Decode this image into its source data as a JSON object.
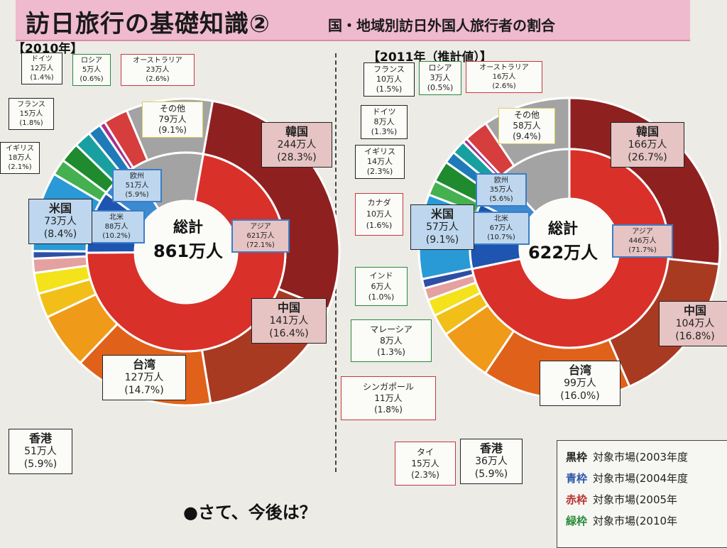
{
  "header": {
    "title": "訪日旅行の基礎知識②",
    "subtitle": "国・地域別訪日外国人旅行者の割合"
  },
  "question": "●さて、今後は？",
  "legend": [
    {
      "key": "黒枠",
      "text": "対象市場(2003年度",
      "color": "#222222"
    },
    {
      "key": "青枠",
      "text": "対象市場(2004年度",
      "color": "#2a55a8"
    },
    {
      "key": "赤枠",
      "text": "対象市場(2005年",
      "color": "#b83030"
    },
    {
      "key": "緑枠",
      "text": "対象市場(2010年",
      "color": "#2a8a3a"
    }
  ],
  "chart_data": [
    {
      "type": "pie",
      "title": "【2010年】",
      "total_label": "総計",
      "total_value": "861万人",
      "inner": [
        {
          "label": "アジア",
          "value": "621万人",
          "pct": "(72.1%)",
          "fraction": 72.1,
          "color": "#d9302a"
        },
        {
          "label": "北米",
          "value": "88万人",
          "pct": "(10.2%)",
          "fraction": 10.2,
          "color": "#1d55b0"
        },
        {
          "label": "欧州",
          "value": "51万人",
          "pct": "(5.9%)",
          "fraction": 5.9,
          "color": "#3c8ad0"
        },
        {
          "label": "",
          "value": "",
          "pct": "",
          "fraction": 11.8,
          "color": "#a3a3a3"
        }
      ],
      "outer": [
        {
          "label": "韓国",
          "value": "244万人",
          "pct": "(28.3%)",
          "fraction": 28.3,
          "color": "#8f2020",
          "frame": "black",
          "bg": "pink"
        },
        {
          "label": "中国",
          "value": "141万人",
          "pct": "(16.4%)",
          "fraction": 16.4,
          "color": "#a93a22",
          "frame": "black",
          "bg": "pink"
        },
        {
          "label": "台湾",
          "value": "127万人",
          "pct": "(14.7%)",
          "fraction": 14.7,
          "color": "#e0621a",
          "frame": "black",
          "bg": "none"
        },
        {
          "label": "香港",
          "value": "51万人",
          "pct": "(5.9%)",
          "fraction": 5.9,
          "color": "#ef9a18",
          "frame": "black",
          "bg": "none"
        },
        {
          "label": "",
          "value": "",
          "pct": "",
          "fraction": 2.6,
          "color": "#f1bf18",
          "frame": "none"
        },
        {
          "label": "",
          "value": "",
          "pct": "",
          "fraction": 2.2,
          "color": "#f4e21a",
          "frame": "none"
        },
        {
          "label": "",
          "value": "",
          "pct": "",
          "fraction": 1.5,
          "color": "#e5a0a0",
          "frame": "none"
        },
        {
          "label": "",
          "value": "",
          "pct": "",
          "fraction": 0.8,
          "color": "#2e4fa6",
          "frame": "none"
        },
        {
          "label": "米国",
          "value": "73万人",
          "pct": "(8.4%)",
          "fraction": 8.4,
          "color": "#2a9ad6",
          "frame": "black",
          "bg": "blue"
        },
        {
          "label": "",
          "value": "",
          "pct": "",
          "fraction": 1.7,
          "color": "#45b050",
          "frame": "none"
        },
        {
          "label": "イギリス",
          "value": "18万人",
          "pct": "(2.1%)",
          "fraction": 2.1,
          "color": "#1f8a2e",
          "frame": "black",
          "bg": "none"
        },
        {
          "label": "フランス",
          "value": "15万人",
          "pct": "(1.8%)",
          "fraction": 1.8,
          "color": "#18a0a0",
          "frame": "black",
          "bg": "none"
        },
        {
          "label": "ドイツ",
          "value": "12万人",
          "pct": "(1.4%)",
          "fraction": 1.4,
          "color": "#1f7ab8",
          "frame": "black",
          "bg": "none"
        },
        {
          "label": "ロシア",
          "value": "5万人",
          "pct": "(0.6%)",
          "fraction": 0.6,
          "color": "#a6308a",
          "frame": "green",
          "bg": "none"
        },
        {
          "label": "オーストラリア",
          "value": "23万人",
          "pct": "(2.6%)",
          "fraction": 2.6,
          "color": "#d63d3d",
          "frame": "red",
          "bg": "none"
        },
        {
          "label": "その他",
          "value": "79万人",
          "pct": "(9.1%)",
          "fraction": 9.1,
          "color": "#a3a3a3",
          "frame": "yellow",
          "bg": "none"
        }
      ]
    },
    {
      "type": "pie",
      "title": "【2011年（推計値）】",
      "total_label": "総計",
      "total_value": "622万人",
      "inner": [
        {
          "label": "アジア",
          "value": "446万人",
          "pct": "(71.7%)",
          "fraction": 71.7,
          "color": "#d9302a"
        },
        {
          "label": "北米",
          "value": "67万人",
          "pct": "(10.7%)",
          "fraction": 10.7,
          "color": "#1d55b0"
        },
        {
          "label": "欧州",
          "value": "35万人",
          "pct": "(5.6%)",
          "fraction": 5.6,
          "color": "#3c8ad0"
        },
        {
          "label": "",
          "value": "",
          "pct": "",
          "fraction": 12.0,
          "color": "#a3a3a3"
        }
      ],
      "outer": [
        {
          "label": "韓国",
          "value": "166万人",
          "pct": "(26.7%)",
          "fraction": 26.7,
          "color": "#8f2020",
          "frame": "black",
          "bg": "pink"
        },
        {
          "label": "中国",
          "value": "104万人",
          "pct": "(16.8%)",
          "fraction": 16.8,
          "color": "#a93a22",
          "frame": "black",
          "bg": "pink"
        },
        {
          "label": "台湾",
          "value": "99万人",
          "pct": "(16.0%)",
          "fraction": 16.0,
          "color": "#e0621a",
          "frame": "black",
          "bg": "none"
        },
        {
          "label": "香港",
          "value": "36万人",
          "pct": "(5.9%)",
          "fraction": 5.9,
          "color": "#ef9a18",
          "frame": "black",
          "bg": "none"
        },
        {
          "label": "タイ",
          "value": "15万人",
          "pct": "(2.3%)",
          "fraction": 2.3,
          "color": "#f1bf18",
          "frame": "red",
          "bg": "none"
        },
        {
          "label": "シンガポール",
          "value": "11万人",
          "pct": "(1.8%)",
          "fraction": 1.8,
          "color": "#f4e21a",
          "frame": "red",
          "bg": "none"
        },
        {
          "label": "マレーシア",
          "value": "8万人",
          "pct": "(1.3%)",
          "fraction": 1.3,
          "color": "#e5a0a0",
          "frame": "green",
          "bg": "none"
        },
        {
          "label": "インド",
          "value": "6万人",
          "pct": "(1.0%)",
          "fraction": 1.0,
          "color": "#2e4fa6",
          "frame": "green",
          "bg": "none"
        },
        {
          "label": "米国",
          "value": "57万人",
          "pct": "(9.1%)",
          "fraction": 9.1,
          "color": "#2a9ad6",
          "frame": "black",
          "bg": "blue"
        },
        {
          "label": "カナダ",
          "value": "10万人",
          "pct": "(1.6%)",
          "fraction": 1.6,
          "color": "#45b050",
          "frame": "red",
          "bg": "none"
        },
        {
          "label": "イギリス",
          "value": "14万人",
          "pct": "(2.3%)",
          "fraction": 2.3,
          "color": "#1f8a2e",
          "frame": "black",
          "bg": "none"
        },
        {
          "label": "ドイツ",
          "value": "8万人",
          "pct": "(1.3%)",
          "fraction": 1.3,
          "color": "#1f7ab8",
          "frame": "black",
          "bg": "none"
        },
        {
          "label": "フランス",
          "value": "10万人",
          "pct": "(1.5%)",
          "fraction": 1.5,
          "color": "#18a0a0",
          "frame": "black",
          "bg": "none"
        },
        {
          "label": "ロシア",
          "value": "3万人",
          "pct": "(0.5%)",
          "fraction": 0.5,
          "color": "#a6308a",
          "frame": "green",
          "bg": "none"
        },
        {
          "label": "オーストラリア",
          "value": "16万人",
          "pct": "(2.6%)",
          "fraction": 2.6,
          "color": "#d63d3d",
          "frame": "red",
          "bg": "none"
        },
        {
          "label": "その他",
          "value": "58万人",
          "pct": "(9.4%)",
          "fraction": 9.4,
          "color": "#a3a3a3",
          "frame": "yellow",
          "bg": "none"
        }
      ]
    }
  ]
}
